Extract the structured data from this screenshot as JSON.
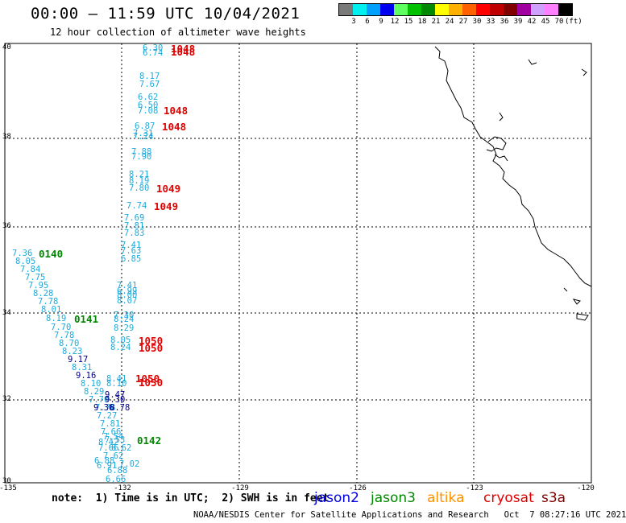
{
  "header": {
    "title": "00:00 – 11:59 UTC 10/04/2021",
    "subtitle": "12 hour collection of altimeter wave heights"
  },
  "legend": {
    "colors": [
      "#7a7a7a",
      "#00f0f0",
      "#00a0ff",
      "#0000f0",
      "#60ff60",
      "#00c000",
      "#008800",
      "#ffff00",
      "#ffb000",
      "#ff6000",
      "#ff0000",
      "#c00000",
      "#800000",
      "#a000a0",
      "#d0a0ff",
      "#ff80ff",
      "#000000"
    ],
    "labels": [
      "3",
      "6",
      "9",
      "12",
      "15",
      "18",
      "21",
      "24",
      "27",
      "30",
      "33",
      "36",
      "39",
      "42",
      "45",
      "70",
      "(ft)"
    ]
  },
  "axes": {
    "y_ticks": [
      "40",
      "38",
      "36",
      "34",
      "32",
      "30"
    ],
    "x_ticks": [
      "-135",
      "-132",
      "-129",
      "-126",
      "-123",
      "-120"
    ]
  },
  "wave_heights": {
    "color": "#1eaadc",
    "track_a": [
      "6.30",
      "6.74",
      "8.17",
      "7.67",
      "6.62",
      "6.50",
      "7.08",
      "6.87",
      "7.31",
      "7.24",
      "7.88",
      "7.90",
      "8.21",
      "8.19",
      "7.80",
      "7.74",
      "7.69",
      "7.81",
      "7.83",
      "7.41",
      "7.63",
      "6.85",
      "7.41",
      "6.99",
      "8.00",
      "8.07",
      "7.30",
      "8.24",
      "8.29",
      "8.05",
      "8.24",
      "8.41",
      "8.10"
    ],
    "track_b": [
      "7.36",
      "8.05",
      "7.84",
      "7.75",
      "7.95",
      "8.28",
      "7.78",
      "8.01",
      "8.19",
      "7.70",
      "7.78",
      "8.70",
      "8.23",
      "8.31",
      "8.10",
      "8.29",
      "7.70",
      "7.78",
      "7.27",
      "7.81",
      "7.66",
      "7.54",
      "7.53",
      "8.42",
      "7.66",
      "8.62",
      "7.62",
      "6.88",
      "7.02",
      "6.91",
      "6.88",
      "6.66"
    ],
    "dark_values": [
      "9.17",
      "9.16",
      "9.47",
      "9.30",
      "9.36",
      "8.78"
    ],
    "dark_color": "#00008c"
  },
  "time_labels": {
    "green": [
      "0140",
      "0141",
      "0142"
    ],
    "green_color": "#008800",
    "red": [
      "1048",
      "1048",
      "1048",
      "1048",
      "1049",
      "1049",
      "1050",
      "1050",
      "1050",
      "1050"
    ],
    "red_color": "#e00000"
  },
  "footer": {
    "note": "note:  1) Time is in UTC;  2) SWH is in feet",
    "satellites": [
      {
        "name": "jason2",
        "color": "#0000e0"
      },
      {
        "name": "jason3",
        "color": "#008800"
      },
      {
        "name": "altika",
        "color": "#ff9000"
      },
      {
        "name": "cryosat",
        "color": "#e00000"
      },
      {
        "name": "s3a",
        "color": "#800000"
      }
    ],
    "credit": "NOAA/NESDIS Center for Satellite Applications and Research   Oct  7 08:27:16 UTC 2021"
  }
}
